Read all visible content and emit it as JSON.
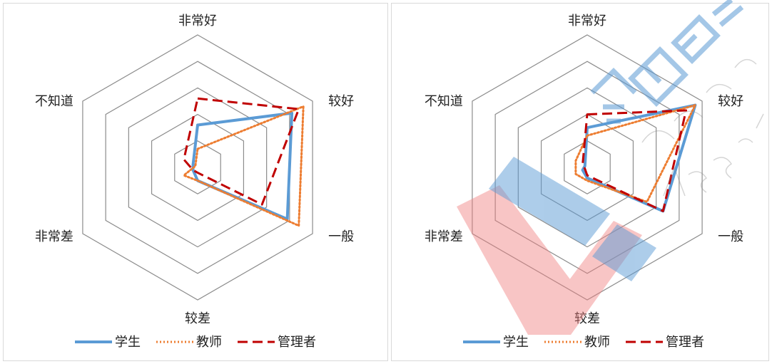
{
  "chart_data": [
    {
      "type": "radar",
      "axes": [
        "非常好",
        "较好",
        "一般",
        "较差",
        "非常差",
        "不知道"
      ],
      "rmax": 5,
      "grid_levels": 5,
      "series": [
        {
          "name": "学生",
          "color": "#5b9bd5",
          "style": "solid",
          "values": [
            1.6,
            4.1,
            3.9,
            0.5,
            0.2,
            0.2
          ]
        },
        {
          "name": "教师",
          "color": "#ed7d31",
          "style": "dotted",
          "values": [
            0.7,
            4.6,
            4.4,
            0.5,
            0.6,
            0.1
          ]
        },
        {
          "name": "管理者",
          "color": "#c00000",
          "style": "dashed",
          "values": [
            2.6,
            4.4,
            2.8,
            0.2,
            0.2,
            0.6
          ]
        }
      ],
      "legend": "bottom"
    },
    {
      "type": "radar",
      "axes": [
        "非常好",
        "较好",
        "一般",
        "较差",
        "非常差",
        "不知道"
      ],
      "rmax": 5,
      "grid_levels": 5,
      "series": [
        {
          "name": "学生",
          "color": "#5b9bd5",
          "style": "solid",
          "values": [
            1.5,
            4.7,
            3.3,
            0.4,
            0.2,
            0.1
          ]
        },
        {
          "name": "教师",
          "color": "#ed7d31",
          "style": "dotted",
          "values": [
            1.2,
            4.7,
            2.6,
            0.5,
            0.5,
            0.5
          ]
        },
        {
          "name": "管理者",
          "color": "#c00000",
          "style": "dashed",
          "values": [
            2.0,
            4.3,
            3.3,
            0.3,
            0.1,
            0.2
          ]
        }
      ],
      "legend": "bottom"
    }
  ],
  "watermark": {
    "text_lines": [
      "全国高校",
      "Chinese Ne",
      "Assuran"
    ],
    "colors": [
      "#5b9bd5",
      "#f08080"
    ]
  }
}
